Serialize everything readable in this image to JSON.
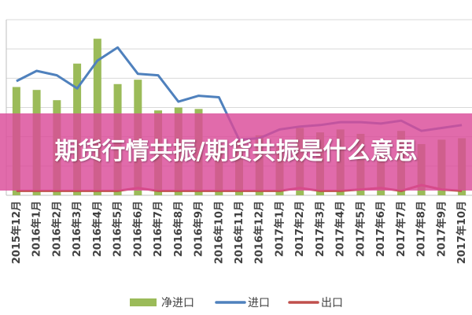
{
  "banner": {
    "title": "期货行情共振/期货共振是什么意思"
  },
  "colors": {
    "net_import": "#9bbb59",
    "import": "#4f81bd",
    "export": "#c0504d",
    "banner": "#da4a98"
  },
  "chart_data": {
    "type": "bar+line",
    "title": "",
    "xlabel": "",
    "ylabel": "",
    "grid": true,
    "legend_position": "bottom",
    "categories": [
      "2015年12月",
      "2016年1月",
      "2016年2月",
      "2016年3月",
      "2016年4月",
      "2016年5月",
      "2016年6月",
      "2016年7月",
      "2016年8月",
      "2016年9月",
      "2016年10月",
      "2016年11月",
      "2016年12月",
      "2017年1月",
      "2017年2月",
      "2017年3月",
      "2017年4月",
      "2017年5月",
      "2017年6月",
      "2017年7月",
      "2017年8月",
      "2017年9月",
      "2017年10月"
    ],
    "series": [
      {
        "name": "净进口",
        "type": "bar",
        "values": [
          7.4,
          7.2,
          6.5,
          9.0,
          10.7,
          7.6,
          7.9,
          5.8,
          6.0,
          5.9,
          3.5,
          3.8,
          4.1,
          3.3,
          4.6,
          4.3,
          4.5,
          4.2,
          2.9,
          4.4,
          3.5,
          3.8,
          3.9
        ]
      },
      {
        "name": "进口",
        "type": "line",
        "values": [
          7.8,
          8.5,
          8.2,
          7.3,
          9.2,
          10.1,
          8.3,
          8.2,
          6.4,
          6.8,
          6.7,
          3.8,
          3.9,
          4.5,
          4.7,
          4.8,
          5.0,
          5.0,
          4.9,
          5.1,
          4.4,
          4.6,
          4.8
        ]
      },
      {
        "name": "出口",
        "type": "line",
        "values": [
          0.3,
          0.3,
          0.3,
          0.3,
          0.3,
          0.3,
          0.5,
          0.3,
          0.3,
          0.3,
          0.3,
          0.3,
          0.3,
          0.3,
          0.5,
          0.3,
          0.3,
          0.4,
          0.5,
          0.3,
          0.7,
          0.4,
          0.3
        ]
      }
    ],
    "ylim": [
      0,
      12
    ]
  }
}
